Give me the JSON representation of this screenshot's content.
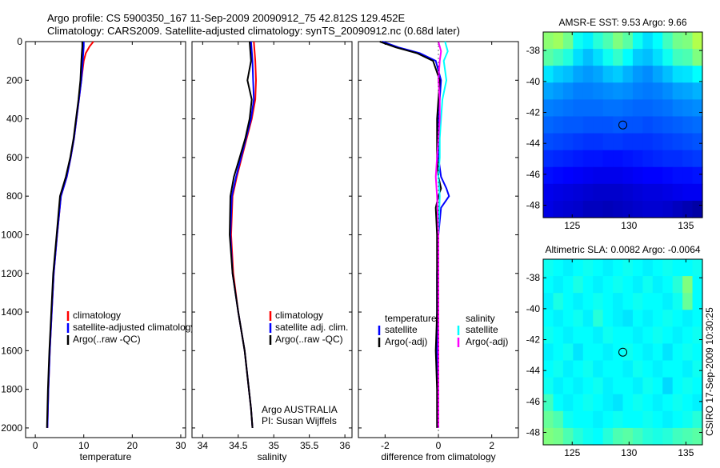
{
  "header": {
    "line1": "Argo profile: CS 5900350_167 11-Sep-2009 20090912_75 42.812S 129.452E",
    "line2": "Climatology: CARS2009. Satellite-adjusted climatology: synTS_20090912.nc (0.68d later)"
  },
  "side_label": "CSIRO 17-Sep-2009 10:30:25",
  "colors": {
    "climatology": "#ff0000",
    "satellite": "#0000ff",
    "argo": "#000000",
    "salinity_satellite": "#00ffff",
    "salinity_argo": "#ff00ff"
  },
  "chart_data": [
    {
      "id": "temperature",
      "type": "line",
      "xlabel": "temperature",
      "ylabel": "",
      "xlim": [
        -2,
        31
      ],
      "ylim": [
        0,
        2050
      ],
      "xticks": [
        0,
        10,
        20,
        30
      ],
      "yticks": [
        0,
        200,
        400,
        600,
        800,
        1000,
        1200,
        1400,
        1600,
        1800,
        2000
      ],
      "legend": [
        "climatology",
        "satellite-adjusted climatology",
        "Argo(..raw -QC)"
      ],
      "series": [
        {
          "name": "climatology",
          "color": "#ff0000",
          "x": [
            12.0,
            11.2,
            10.4,
            10.0,
            9.5,
            9.0,
            8.5,
            8.0,
            7.3,
            6.5,
            5.3,
            4.5,
            3.8,
            3.4,
            3.0,
            2.7,
            2.6,
            2.5
          ],
          "y": [
            0,
            25,
            60,
            100,
            200,
            300,
            400,
            500,
            600,
            700,
            800,
            1000,
            1200,
            1400,
            1600,
            1800,
            1900,
            2000
          ]
        },
        {
          "name": "satellite-adjusted climatology",
          "color": "#0000ff",
          "x": [
            10.0,
            10.0,
            9.9,
            9.8,
            9.5,
            9.0,
            8.5,
            8.0,
            7.3,
            6.5,
            5.3,
            4.5,
            3.8,
            3.4,
            3.0,
            2.7,
            2.6,
            2.5
          ],
          "y": [
            0,
            25,
            60,
            100,
            200,
            300,
            400,
            500,
            600,
            700,
            800,
            1000,
            1200,
            1400,
            1600,
            1800,
            1900,
            2000
          ]
        },
        {
          "name": "Argo(..raw -QC)",
          "color": "#000000",
          "x": [
            9.7,
            9.7,
            9.6,
            9.5,
            9.3,
            8.9,
            8.4,
            7.9,
            7.2,
            6.3,
            5.1,
            4.4,
            3.7,
            3.3,
            2.9,
            2.6,
            2.5,
            2.4
          ],
          "y": [
            0,
            25,
            60,
            100,
            200,
            300,
            400,
            500,
            600,
            700,
            800,
            1000,
            1200,
            1400,
            1600,
            1800,
            1900,
            2000
          ]
        }
      ]
    },
    {
      "id": "salinity",
      "type": "line",
      "xlabel": "salinity",
      "ylabel": "",
      "xlim": [
        33.85,
        36.1
      ],
      "ylim": [
        0,
        2050
      ],
      "xticks": [
        34,
        34.5,
        35,
        35.5,
        36
      ],
      "xticklabels": [
        "34",
        "34.5",
        "35",
        "35.5",
        "36"
      ],
      "yticks": [
        0,
        200,
        400,
        600,
        800,
        1000,
        1200,
        1400,
        1600,
        1800,
        2000
      ],
      "legend": [
        "climatology",
        "satellite adj. clim.",
        "Argo(..raw -QC)"
      ],
      "annotation": [
        "Argo AUSTRALIA",
        "PI: Susan Wijffels"
      ],
      "series": [
        {
          "name": "climatology",
          "color": "#ff0000",
          "x": [
            34.72,
            34.73,
            34.74,
            34.75,
            34.74,
            34.69,
            34.62,
            34.55,
            34.48,
            34.42,
            34.4,
            34.43,
            34.5,
            34.59,
            34.65,
            34.68,
            34.7
          ],
          "y": [
            0,
            50,
            100,
            200,
            300,
            400,
            500,
            600,
            700,
            800,
            1000,
            1200,
            1400,
            1600,
            1800,
            1900,
            2000
          ]
        },
        {
          "name": "satellite adj. clim.",
          "color": "#0000ff",
          "x": [
            34.68,
            34.69,
            34.7,
            34.71,
            34.72,
            34.68,
            34.61,
            34.54,
            34.47,
            34.41,
            34.39,
            34.42,
            34.5,
            34.59,
            34.65,
            34.68,
            34.7
          ],
          "y": [
            0,
            50,
            100,
            200,
            300,
            400,
            500,
            600,
            700,
            800,
            1000,
            1200,
            1400,
            1600,
            1800,
            1900,
            2000
          ]
        },
        {
          "name": "Argo(..raw -QC)",
          "color": "#000000",
          "x": [
            34.66,
            34.67,
            34.68,
            34.63,
            34.69,
            34.66,
            34.6,
            34.52,
            34.44,
            34.39,
            34.38,
            34.42,
            34.5,
            34.59,
            34.65,
            34.68,
            34.7
          ],
          "y": [
            0,
            50,
            100,
            200,
            300,
            400,
            500,
            600,
            700,
            800,
            1000,
            1200,
            1400,
            1600,
            1800,
            1900,
            2000
          ]
        }
      ]
    },
    {
      "id": "difference",
      "type": "line",
      "xlabel": "difference from climatology",
      "ylabel": "",
      "xlim": [
        -3,
        3
      ],
      "ylim": [
        0,
        2050
      ],
      "xticks": [
        -2,
        0,
        2
      ],
      "yticks": [
        0,
        200,
        400,
        600,
        800,
        1000,
        1200,
        1400,
        1600,
        1800,
        2000
      ],
      "legend_groups": [
        {
          "title": "temperature",
          "entries": [
            "satellite",
            "Argo(-adj)"
          ]
        },
        {
          "title": "salinity",
          "entries": [
            "satellite",
            "Argo(-adj)"
          ]
        }
      ],
      "series": [
        {
          "name": "temperature satellite",
          "color": "#0000ff",
          "x": [
            -2.1,
            -1.5,
            -0.7,
            -0.1,
            0.1,
            0.0,
            0.0,
            0.0,
            0.1,
            0.3,
            0.4,
            0.1,
            0.0,
            -0.05,
            -0.05,
            -0.05,
            0.0,
            0.0
          ],
          "y": [
            0,
            30,
            60,
            100,
            200,
            400,
            500,
            600,
            700,
            760,
            800,
            860,
            1000,
            1200,
            1400,
            1600,
            1800,
            2000
          ]
        },
        {
          "name": "temperature Argo(-adj)",
          "color": "#000000",
          "x": [
            -2.2,
            -1.6,
            -0.8,
            -0.2,
            0.05,
            -0.05,
            -0.05,
            -0.05,
            0.0,
            0.1,
            0.0,
            -0.1,
            -0.05,
            -0.05,
            -0.05,
            -0.1,
            -0.05,
            -0.05
          ],
          "y": [
            0,
            30,
            60,
            100,
            200,
            400,
            500,
            600,
            700,
            760,
            800,
            860,
            1000,
            1200,
            1400,
            1600,
            1800,
            2000
          ]
        },
        {
          "name": "salinity satellite",
          "color": "#00ffff",
          "x": [
            0.25,
            0.35,
            0.2,
            0.3,
            0.15,
            0.1,
            0.05,
            0.05,
            0.0,
            0.05,
            0.0,
            0.0,
            0.0,
            0.0,
            0.0,
            0.0,
            0.0
          ],
          "y": [
            0,
            50,
            100,
            200,
            300,
            400,
            500,
            600,
            700,
            800,
            1000,
            1200,
            1400,
            1600,
            1800,
            1900,
            2000
          ]
        },
        {
          "name": "salinity Argo(-adj)",
          "color": "#ff00ff",
          "x": [
            0.0,
            0.1,
            0.05,
            0.0,
            0.05,
            0.05,
            0.0,
            -0.05,
            -0.1,
            -0.05,
            0.0,
            0.0,
            0.0,
            0.0,
            0.0,
            0.0,
            0.0
          ],
          "y": [
            0,
            50,
            100,
            200,
            300,
            400,
            500,
            600,
            700,
            800,
            1000,
            1200,
            1400,
            1600,
            1800,
            1900,
            2000
          ]
        }
      ]
    },
    {
      "id": "sst_map",
      "type": "heatmap",
      "title": "AMSR-E SST: 9.53 Argo: 9.66",
      "xlim": [
        122.45,
        136.45
      ],
      "ylim": [
        -48.8,
        -36.8
      ],
      "xticks": [
        125,
        130,
        135
      ],
      "yticks": [
        -38,
        -40,
        -42,
        -44,
        -46,
        -48
      ],
      "marker": {
        "lon": 129.452,
        "lat": -42.812
      },
      "colormap": [
        "#00007f",
        "#0000ff",
        "#007fff",
        "#00ffff",
        "#7fff7f",
        "#ffff00"
      ],
      "grid_values": [
        [
          0.82,
          0.85,
          0.78,
          0.62,
          0.58,
          0.66,
          0.72,
          0.8,
          0.74,
          0.62,
          0.55,
          0.6,
          0.7,
          0.78,
          0.8,
          0.88
        ],
        [
          0.74,
          0.7,
          0.65,
          0.55,
          0.5,
          0.55,
          0.62,
          0.68,
          0.6,
          0.52,
          0.5,
          0.55,
          0.62,
          0.7,
          0.72,
          0.8
        ],
        [
          0.56,
          0.52,
          0.5,
          0.46,
          0.44,
          0.46,
          0.5,
          0.52,
          0.48,
          0.44,
          0.42,
          0.46,
          0.5,
          0.55,
          0.56,
          0.6
        ],
        [
          0.46,
          0.44,
          0.42,
          0.4,
          0.4,
          0.41,
          0.42,
          0.43,
          0.42,
          0.4,
          0.39,
          0.4,
          0.42,
          0.45,
          0.46,
          0.48
        ],
        [
          0.4,
          0.39,
          0.38,
          0.37,
          0.37,
          0.37,
          0.38,
          0.38,
          0.37,
          0.36,
          0.36,
          0.37,
          0.38,
          0.4,
          0.41,
          0.42
        ],
        [
          0.36,
          0.35,
          0.34,
          0.34,
          0.33,
          0.33,
          0.33,
          0.34,
          0.33,
          0.33,
          0.32,
          0.33,
          0.34,
          0.35,
          0.36,
          0.37
        ],
        [
          0.32,
          0.31,
          0.3,
          0.29,
          0.28,
          0.28,
          0.29,
          0.29,
          0.28,
          0.28,
          0.28,
          0.29,
          0.3,
          0.31,
          0.32,
          0.33
        ],
        [
          0.27,
          0.26,
          0.25,
          0.24,
          0.23,
          0.23,
          0.22,
          0.22,
          0.23,
          0.24,
          0.25,
          0.26,
          0.27,
          0.27,
          0.28,
          0.29
        ],
        [
          0.22,
          0.21,
          0.2,
          0.19,
          0.18,
          0.17,
          0.17,
          0.17,
          0.18,
          0.19,
          0.2,
          0.2,
          0.21,
          0.22,
          0.22,
          0.23
        ],
        [
          0.17,
          0.16,
          0.15,
          0.14,
          0.13,
          0.12,
          0.12,
          0.12,
          0.13,
          0.14,
          0.15,
          0.15,
          0.16,
          0.17,
          0.18,
          0.18
        ],
        [
          0.16,
          0.14,
          0.13,
          0.12,
          0.1,
          0.1,
          0.09,
          0.1,
          0.11,
          0.12,
          0.13,
          0.13,
          0.12,
          0.1,
          0.08,
          0.06
        ]
      ]
    },
    {
      "id": "sla_map",
      "type": "heatmap",
      "title": "Altimetric SLA: 0.0082 Argo: -0.0064",
      "xlim": [
        122.45,
        136.45
      ],
      "ylim": [
        -48.8,
        -36.8
      ],
      "xticks": [
        125,
        130,
        135
      ],
      "yticks": [
        -38,
        -40,
        -42,
        -44,
        -46,
        -48
      ],
      "marker": {
        "lon": 129.452,
        "lat": -42.812
      },
      "colormap": [
        "#00007f",
        "#0000ff",
        "#007fff",
        "#00ffff",
        "#7fff7f",
        "#ffff00"
      ],
      "grid_values": [
        [
          0.62,
          0.6,
          0.58,
          0.6,
          0.62,
          0.6,
          0.58,
          0.6,
          0.62,
          0.6,
          0.58,
          0.6,
          0.62,
          0.6,
          0.6,
          0.62
        ],
        [
          0.6,
          0.58,
          0.6,
          0.64,
          0.6,
          0.58,
          0.6,
          0.62,
          0.6,
          0.58,
          0.62,
          0.58,
          0.6,
          0.66,
          0.8,
          0.6
        ],
        [
          0.58,
          0.64,
          0.6,
          0.58,
          0.6,
          0.62,
          0.6,
          0.58,
          0.6,
          0.62,
          0.6,
          0.6,
          0.58,
          0.62,
          0.76,
          0.6
        ],
        [
          0.6,
          0.58,
          0.6,
          0.62,
          0.58,
          0.66,
          0.6,
          0.58,
          0.56,
          0.6,
          0.58,
          0.6,
          0.62,
          0.6,
          0.58,
          0.6
        ],
        [
          0.62,
          0.6,
          0.58,
          0.6,
          0.6,
          0.58,
          0.62,
          0.6,
          0.6,
          0.58,
          0.6,
          0.62,
          0.6,
          0.58,
          0.6,
          0.62
        ],
        [
          0.58,
          0.6,
          0.62,
          0.56,
          0.6,
          0.6,
          0.58,
          0.6,
          0.62,
          0.6,
          0.58,
          0.6,
          0.56,
          0.6,
          0.62,
          0.6
        ],
        [
          0.6,
          0.62,
          0.58,
          0.6,
          0.62,
          0.58,
          0.6,
          0.6,
          0.58,
          0.62,
          0.6,
          0.58,
          0.6,
          0.6,
          0.58,
          0.62
        ],
        [
          0.62,
          0.58,
          0.6,
          0.58,
          0.6,
          0.62,
          0.58,
          0.6,
          0.6,
          0.58,
          0.62,
          0.6,
          0.54,
          0.6,
          0.62,
          0.6
        ],
        [
          0.7,
          0.6,
          0.58,
          0.6,
          0.62,
          0.6,
          0.58,
          0.56,
          0.6,
          0.62,
          0.6,
          0.58,
          0.6,
          0.62,
          0.6,
          0.58
        ],
        [
          0.76,
          0.72,
          0.62,
          0.6,
          0.6,
          0.58,
          0.6,
          0.62,
          0.6,
          0.6,
          0.62,
          0.6,
          0.58,
          0.6,
          0.62,
          0.66
        ],
        [
          0.8,
          0.78,
          0.72,
          0.66,
          0.62,
          0.6,
          0.66,
          0.72,
          0.74,
          0.7,
          0.66,
          0.64,
          0.66,
          0.7,
          0.72,
          0.74
        ]
      ]
    }
  ]
}
